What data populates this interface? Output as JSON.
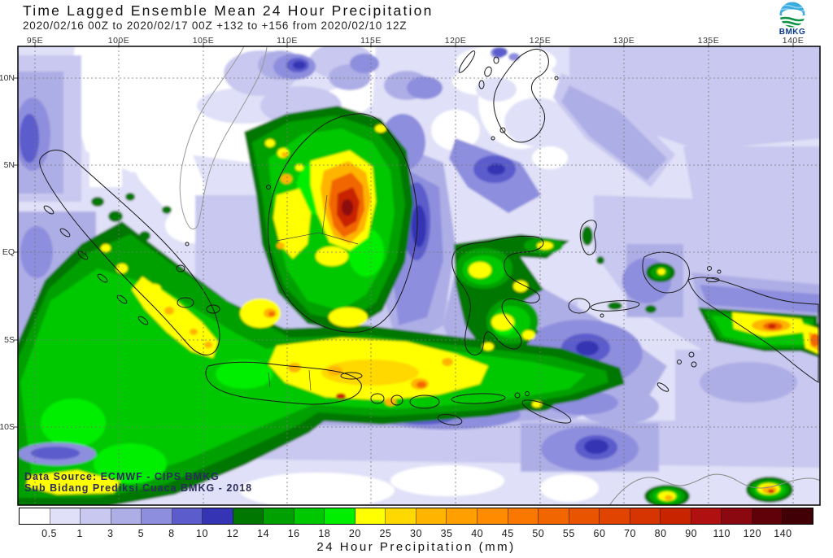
{
  "header": {
    "title": "Time Lagged Ensemble Mean 24 Hour Precipitation",
    "subtitle": "2020/02/16 00Z to 2020/02/17 00Z +132 to +156 from 2020/02/10 12Z",
    "logo_label": "BMKG"
  },
  "map": {
    "lon_labels": [
      "95E",
      "100E",
      "105E",
      "110E",
      "115E",
      "120E",
      "125E",
      "130E",
      "135E",
      "140E"
    ],
    "lat_labels": [
      "10N",
      "5N",
      "EQ",
      "5S",
      "10S"
    ],
    "credits_line1": "Data Source: ECMWF - CIPS BMKG",
    "credits_line2": "Sub Bidang Prediksi Cuaca BMKG - 2018"
  },
  "colorbar": {
    "caption": "24 Hour Precipitation (mm)",
    "tick_labels": [
      "0.5",
      "1",
      "3",
      "5",
      "8",
      "10",
      "12",
      "14",
      "16",
      "18",
      "20",
      "25",
      "30",
      "35",
      "40",
      "45",
      "50",
      "55",
      "60",
      "70",
      "80",
      "90",
      "110",
      "120",
      "140"
    ],
    "segment_colors": [
      "#ffffff",
      "#e0e0f8",
      "#c8c8f0",
      "#aeaee6",
      "#8e8ede",
      "#5c5ccc",
      "#3434b4",
      "#007700",
      "#00a000",
      "#00c800",
      "#00ee00",
      "#ffff00",
      "#ffd800",
      "#ffb400",
      "#ffa000",
      "#ff8c00",
      "#fa7800",
      "#f26600",
      "#e85400",
      "#e04400",
      "#d63400",
      "#c82400",
      "#b01010",
      "#8c0810",
      "#600008",
      "#400006"
    ],
    "units": "mm"
  }
}
